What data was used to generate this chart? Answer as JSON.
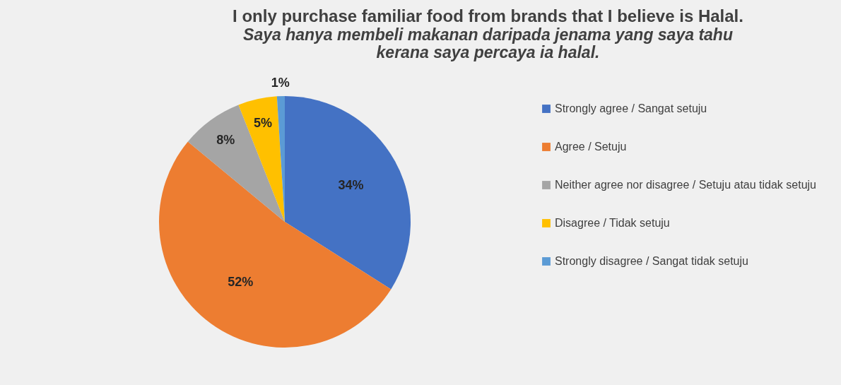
{
  "chart_data": {
    "type": "pie",
    "title": "I only purchase familiar food from brands that I believe is Halal.",
    "subtitle": "Saya hanya membeli makanan daripada jenama yang saya tahu kerana saya percaya ia halal.",
    "categories": [
      "Strongly agree / Sangat setuju",
      "Agree / Setuju",
      "Neither agree nor disagree / Setuju atau tidak setuju",
      "Disagree / Tidak setuju",
      "Strongly disagree / Sangat tidak setuju"
    ],
    "values": [
      34,
      52,
      8,
      5,
      1
    ],
    "colors": [
      "#4472c4",
      "#ed7d31",
      "#a5a5a5",
      "#ffc000",
      "#5b9bd5"
    ],
    "value_labels": [
      "34%",
      "52%",
      "8%",
      "5%",
      "1%"
    ],
    "legend": "right"
  }
}
